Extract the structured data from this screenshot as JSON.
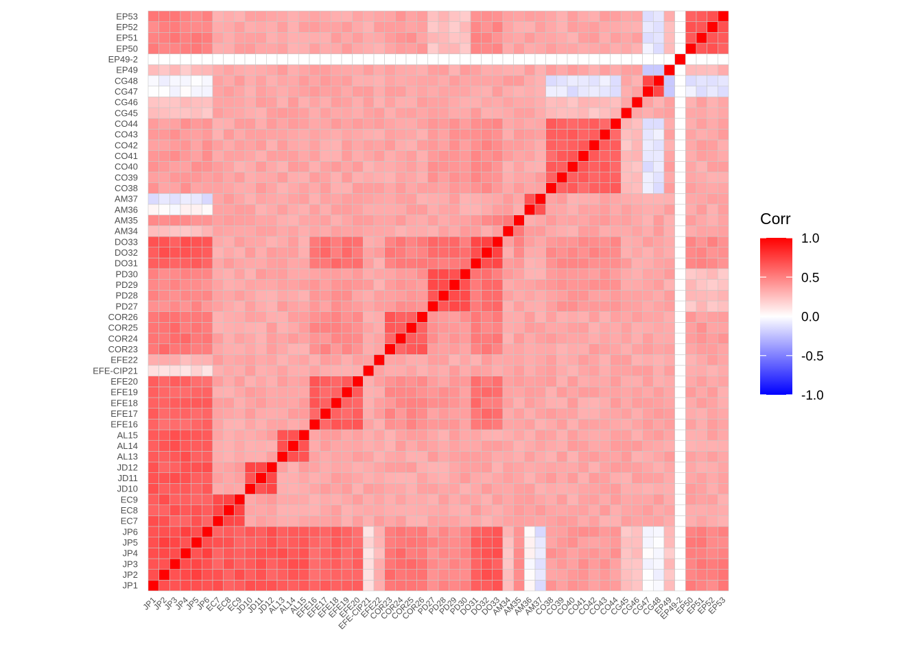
{
  "chart_data": {
    "type": "heatmap",
    "title": "",
    "xlabel": "",
    "ylabel": "",
    "variables": [
      "JP1",
      "JP2",
      "JP3",
      "JP4",
      "JP5",
      "JP6",
      "EC7",
      "EC8",
      "EC9",
      "JD10",
      "JD11",
      "JD12",
      "AL13",
      "AL14",
      "AL15",
      "EFE16",
      "EFE17",
      "EFE18",
      "EFE19",
      "EFE20",
      "EFE-CIP21",
      "EFE22",
      "COR23",
      "COR24",
      "COR25",
      "COR26",
      "PD27",
      "PD28",
      "PD29",
      "PD30",
      "DO31",
      "DO32",
      "DO33",
      "AM34",
      "AM35",
      "AM36",
      "AM37",
      "CO38",
      "CO39",
      "CO40",
      "CO41",
      "CO42",
      "CO43",
      "CO44",
      "CG45",
      "CG46",
      "CG47",
      "CG48",
      "EP49",
      "EP49-2",
      "EP50",
      "EP51",
      "EP52",
      "EP53"
    ],
    "groups": [
      {
        "prefix": "JP",
        "members": [
          "JP1",
          "JP2",
          "JP3",
          "JP4",
          "JP5",
          "JP6"
        ]
      },
      {
        "prefix": "EC",
        "members": [
          "EC7",
          "EC8",
          "EC9"
        ]
      },
      {
        "prefix": "JD",
        "members": [
          "JD10",
          "JD11",
          "JD12"
        ]
      },
      {
        "prefix": "AL",
        "members": [
          "AL13",
          "AL14",
          "AL15"
        ]
      },
      {
        "prefix": "EFE",
        "members": [
          "EFE16",
          "EFE17",
          "EFE18",
          "EFE19",
          "EFE20"
        ]
      },
      {
        "prefix": "EFE-CIP",
        "members": [
          "EFE-CIP21"
        ]
      },
      {
        "prefix": "EFE22",
        "members": [
          "EFE22"
        ]
      },
      {
        "prefix": "COR",
        "members": [
          "COR23",
          "COR24",
          "COR25",
          "COR26"
        ]
      },
      {
        "prefix": "PD",
        "members": [
          "PD27",
          "PD28",
          "PD29",
          "PD30"
        ]
      },
      {
        "prefix": "DO",
        "members": [
          "DO31",
          "DO32",
          "DO33"
        ]
      },
      {
        "prefix": "AM34",
        "members": [
          "AM34"
        ]
      },
      {
        "prefix": "AM35",
        "members": [
          "AM35"
        ]
      },
      {
        "prefix": "AM36",
        "members": [
          "AM36"
        ]
      },
      {
        "prefix": "AM37",
        "members": [
          "AM37"
        ]
      },
      {
        "prefix": "CO",
        "members": [
          "CO38",
          "CO39",
          "CO40",
          "CO41",
          "CO42",
          "CO43",
          "CO44"
        ]
      },
      {
        "prefix": "CG4546",
        "members": [
          "CG45",
          "CG46"
        ]
      },
      {
        "prefix": "CG4748",
        "members": [
          "CG47",
          "CG48"
        ]
      },
      {
        "prefix": "EP49",
        "members": [
          "EP49"
        ]
      },
      {
        "prefix": "EP49-2",
        "members": [
          "EP49-2"
        ]
      },
      {
        "prefix": "EP",
        "members": [
          "EP50",
          "EP51",
          "EP52",
          "EP53"
        ]
      }
    ],
    "within_group_corr": {
      "JP": 0.72,
      "EC": 0.7,
      "JD": 0.72,
      "AL": 0.72,
      "EFE": 0.62,
      "EFE-CIP": 1.0,
      "EFE22": 1.0,
      "COR": 0.62,
      "PD": 0.7,
      "DO": 0.72,
      "AM34": 1.0,
      "AM35": 1.0,
      "AM36": 1.0,
      "AM37": 1.0,
      "CO": 0.62,
      "CG4546": 0.35,
      "CG4748": 0.75,
      "EP49": 1.0,
      "EP49-2": 1.0,
      "EP": 0.65
    },
    "between_group_corr": [
      {
        "a": "JP",
        "b": "EC",
        "v": 0.65
      },
      {
        "a": "JP",
        "b": "JD",
        "v": 0.65
      },
      {
        "a": "JP",
        "b": "AL",
        "v": 0.65
      },
      {
        "a": "JP",
        "b": "EFE",
        "v": 0.6
      },
      {
        "a": "JP",
        "b": "EFE-CIP",
        "v": 0.15
      },
      {
        "a": "JP",
        "b": "EFE22",
        "v": 0.3
      },
      {
        "a": "JP",
        "b": "COR",
        "v": 0.55
      },
      {
        "a": "JP",
        "b": "PD",
        "v": 0.45
      },
      {
        "a": "JP",
        "b": "DO",
        "v": 0.65
      },
      {
        "a": "JP",
        "b": "AM34",
        "v": 0.25
      },
      {
        "a": "JP",
        "b": "AM35",
        "v": 0.45
      },
      {
        "a": "JP",
        "b": "AM36",
        "v": 0.02
      },
      {
        "a": "JP",
        "b": "AM37",
        "v": -0.12
      },
      {
        "a": "JP",
        "b": "CO",
        "v": 0.4
      },
      {
        "a": "JP",
        "b": "CG4546",
        "v": 0.25
      },
      {
        "a": "JP",
        "b": "CG4748",
        "v": -0.02
      },
      {
        "a": "JP",
        "b": "EP49",
        "v": 0.25
      },
      {
        "a": "JP",
        "b": "EP",
        "v": 0.5
      },
      {
        "a": "EFE",
        "b": "COR",
        "v": 0.45
      },
      {
        "a": "EFE",
        "b": "PD",
        "v": 0.4
      },
      {
        "a": "EFE",
        "b": "DO",
        "v": 0.55
      },
      {
        "a": "COR",
        "b": "PD",
        "v": 0.4
      },
      {
        "a": "COR",
        "b": "DO",
        "v": 0.5
      },
      {
        "a": "PD",
        "b": "DO",
        "v": 0.55
      },
      {
        "a": "CO",
        "b": "DO",
        "v": 0.45
      },
      {
        "a": "CO",
        "b": "PD",
        "v": 0.4
      },
      {
        "a": "CO",
        "b": "COR",
        "v": 0.35
      },
      {
        "a": "CO",
        "b": "CG4546",
        "v": 0.25
      },
      {
        "a": "CO",
        "b": "CG4748",
        "v": -0.1
      },
      {
        "a": "CO",
        "b": "EP",
        "v": 0.35
      },
      {
        "a": "EP",
        "b": "DO",
        "v": 0.45
      },
      {
        "a": "EP",
        "b": "COR",
        "v": 0.4
      },
      {
        "a": "EP",
        "b": "PD",
        "v": 0.25
      },
      {
        "a": "EP",
        "b": "CG4748",
        "v": -0.1
      },
      {
        "a": "EP",
        "b": "EP49",
        "v": 0.3
      },
      {
        "a": "CG4748",
        "b": "EP49",
        "v": -0.2
      },
      {
        "a": "AM35",
        "b": "CO",
        "v": 0.4
      },
      {
        "a": "AM35",
        "b": "DO",
        "v": 0.45
      },
      {
        "a": "AM36",
        "b": "AM37",
        "v": 0.7
      },
      {
        "a": "AM34",
        "b": "AM35",
        "v": 0.5
      }
    ],
    "default_corr": 0.35,
    "zero_variance_variables": [
      "EP49-2"
    ],
    "legend": {
      "title": "Corr",
      "ticks": [
        "1.0",
        "0.5",
        "0.0",
        "-0.5",
        "-1.0"
      ],
      "range": [
        -1,
        1
      ],
      "position": "right"
    },
    "color_scale": {
      "low": "#0000ff",
      "mid": "#ffffff",
      "high": "#ff0000"
    },
    "grid_color": "#c8c8c8"
  }
}
